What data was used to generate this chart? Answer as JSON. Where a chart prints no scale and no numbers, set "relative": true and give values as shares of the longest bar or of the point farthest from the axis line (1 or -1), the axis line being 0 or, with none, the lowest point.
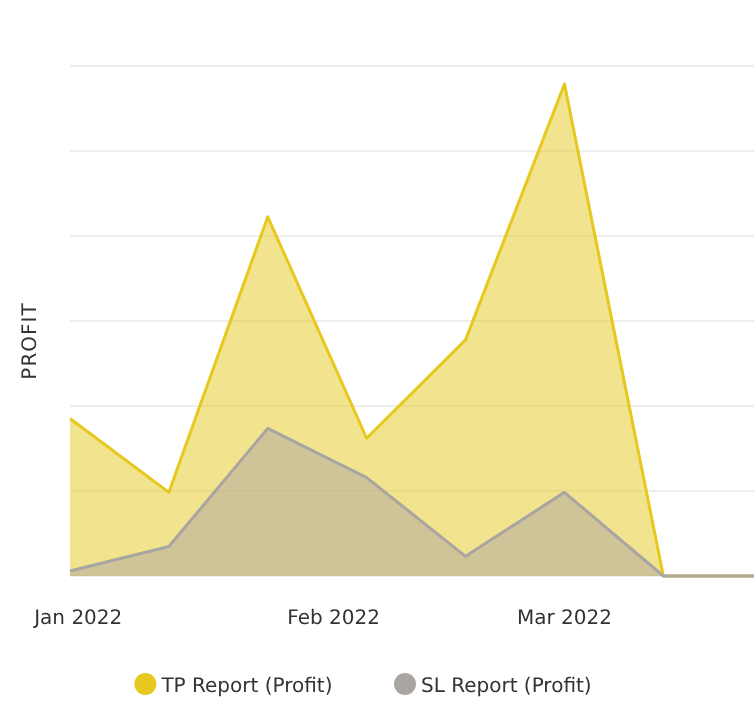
{
  "chart_data": {
    "type": "area",
    "ylabel": "PROFIT",
    "relative": true,
    "x": [
      "2021-12-31",
      "2022-01-12",
      "2022-01-24",
      "2022-02-05",
      "2022-02-17",
      "2022-03-01",
      "2022-03-13",
      "2022-03-24"
    ],
    "xlim": [
      "2021-12-31",
      "2022-03-24"
    ],
    "xticks": [
      {
        "value": "2022-01-01",
        "label": "Jan 2022"
      },
      {
        "value": "2022-02-01",
        "label": "Feb 2022"
      },
      {
        "value": "2022-03-01",
        "label": "Mar 2022"
      }
    ],
    "series": [
      {
        "name": "TP Report (Profit)",
        "color": "#e6c81e",
        "values": [
          0.32,
          0.17,
          0.73,
          0.28,
          0.48,
          1,
          0,
          0
        ]
      },
      {
        "name": "SL Report (Profit)",
        "color": "#a9a5a0",
        "values": [
          0.01,
          0.06,
          0.3,
          0.2,
          0.04,
          0.17,
          0,
          0
        ]
      }
    ],
    "grid": "y",
    "legend": "bottom"
  }
}
